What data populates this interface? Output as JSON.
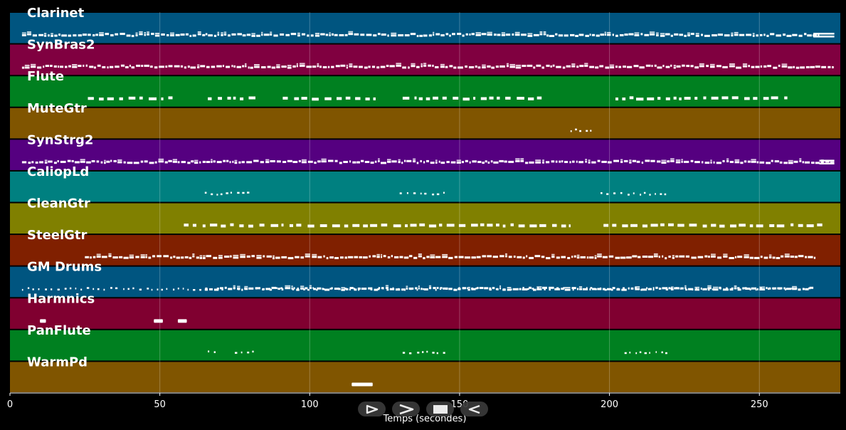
{
  "chart_data": {
    "type": "piano-roll",
    "xlabel": "Temps (secondes)",
    "xlim": [
      0,
      277
    ],
    "xticks": [
      0,
      50,
      100,
      150,
      200,
      250
    ],
    "grid": true,
    "tracks": [
      {
        "name": "Clarinet",
        "color": "#005580",
        "segments": [
          [
            4,
            270,
            "dense"
          ],
          [
            268,
            275,
            "sustain"
          ]
        ]
      },
      {
        "name": "SynBras2",
        "color": "#800040",
        "segments": [
          [
            4,
            275,
            "dense"
          ]
        ]
      },
      {
        "name": "Flute",
        "color": "#008020",
        "segments": [
          [
            26,
            56,
            "phrase"
          ],
          [
            66,
            82,
            "phrase"
          ],
          [
            91,
            122,
            "phrase"
          ],
          [
            131,
            178,
            "phrase"
          ],
          [
            202,
            260,
            "phrase"
          ]
        ]
      },
      {
        "name": "MuteGtr",
        "color": "#805500",
        "segments": [
          [
            187,
            194,
            "dots"
          ]
        ]
      },
      {
        "name": "SynStrg2",
        "color": "#550080",
        "segments": [
          [
            4,
            275,
            "dense"
          ],
          [
            270,
            275,
            "sustain"
          ]
        ]
      },
      {
        "name": "CaliopLd",
        "color": "#008080",
        "segments": [
          [
            65,
            80,
            "dots"
          ],
          [
            130,
            145,
            "dots"
          ],
          [
            197,
            220,
            "dots"
          ]
        ]
      },
      {
        "name": "CleanGtr",
        "color": "#808000",
        "segments": [
          [
            58,
            187,
            "phrase"
          ],
          [
            198,
            271,
            "phrase"
          ]
        ]
      },
      {
        "name": "SteelGtr",
        "color": "#802000",
        "segments": [
          [
            25,
            269,
            "dense"
          ]
        ]
      },
      {
        "name": "GM Drums",
        "color": "#005580",
        "segments": [
          [
            4,
            268,
            "dots"
          ],
          [
            65,
            268,
            "dense"
          ]
        ]
      },
      {
        "name": "Harmnics",
        "color": "#800030",
        "segments": [
          [
            10,
            12,
            "note"
          ],
          [
            48,
            51,
            "note"
          ],
          [
            56,
            59,
            "note"
          ]
        ]
      },
      {
        "name": "PanFlute",
        "color": "#008020",
        "segments": [
          [
            66,
            70,
            "dots"
          ],
          [
            75,
            82,
            "dots"
          ],
          [
            131,
            146,
            "dots"
          ],
          [
            205,
            220,
            "dots"
          ]
        ]
      },
      {
        "name": "WarmPd",
        "color": "#805500",
        "segments": [
          [
            114,
            121,
            "note"
          ]
        ]
      }
    ]
  },
  "controls": [
    {
      "name": "play-button",
      "icon": "play-outline-icon"
    },
    {
      "name": "forward-button",
      "icon": "chevron-right-icon"
    },
    {
      "name": "stop-button",
      "icon": "stop-square-icon"
    },
    {
      "name": "rewind-button",
      "icon": "rewind-outline-icon"
    }
  ]
}
